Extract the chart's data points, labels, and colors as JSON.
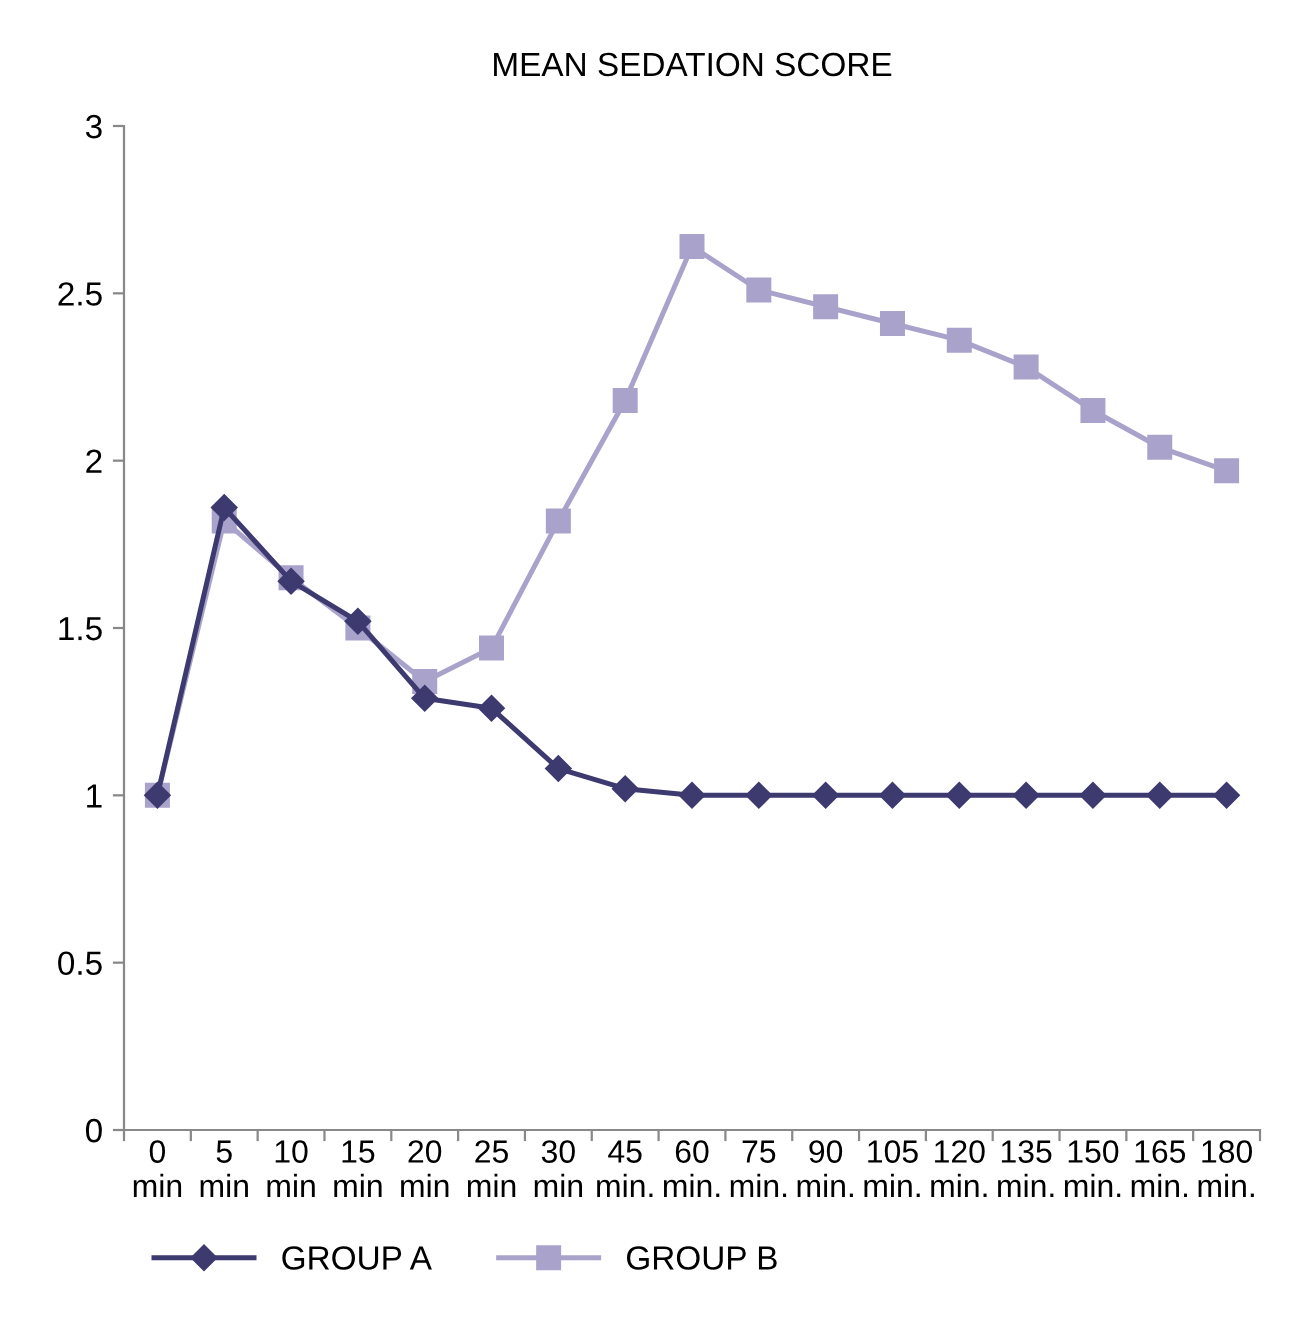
{
  "chart_data": {
    "type": "line",
    "title": "MEAN SEDATION SCORE",
    "categories": [
      "0\nmin",
      "5\nmin",
      "10\nmin",
      "15\nmin",
      "20\nmin",
      "25\nmin",
      "30\nmin",
      "45\nmin.",
      "60\nmin.",
      "75\nmin.",
      "90\nmin.",
      "105\nmin.",
      "120\nmin.",
      "135\nmin.",
      "150\nmin.",
      "165\nmin.",
      "180\nmin."
    ],
    "series": [
      {
        "name": "GROUP A",
        "color": "#3d3a70",
        "marker": "diamond",
        "values": [
          1.0,
          1.86,
          1.64,
          1.52,
          1.29,
          1.26,
          1.08,
          1.02,
          1.0,
          1.0,
          1.0,
          1.0,
          1.0,
          1.0,
          1.0,
          1.0,
          1.0
        ]
      },
      {
        "name": "GROUP B",
        "color": "#a9a3cc",
        "marker": "square",
        "values": [
          1.0,
          1.82,
          1.65,
          1.5,
          1.34,
          1.44,
          1.82,
          2.18,
          2.64,
          2.51,
          2.46,
          2.41,
          2.36,
          2.28,
          2.15,
          2.04,
          1.97
        ]
      }
    ],
    "ylim": [
      0,
      3
    ],
    "yticks": [
      0,
      0.5,
      1,
      1.5,
      2,
      2.5,
      3
    ],
    "grid": false,
    "legend": "bottom left",
    "line_style": "solid"
  }
}
